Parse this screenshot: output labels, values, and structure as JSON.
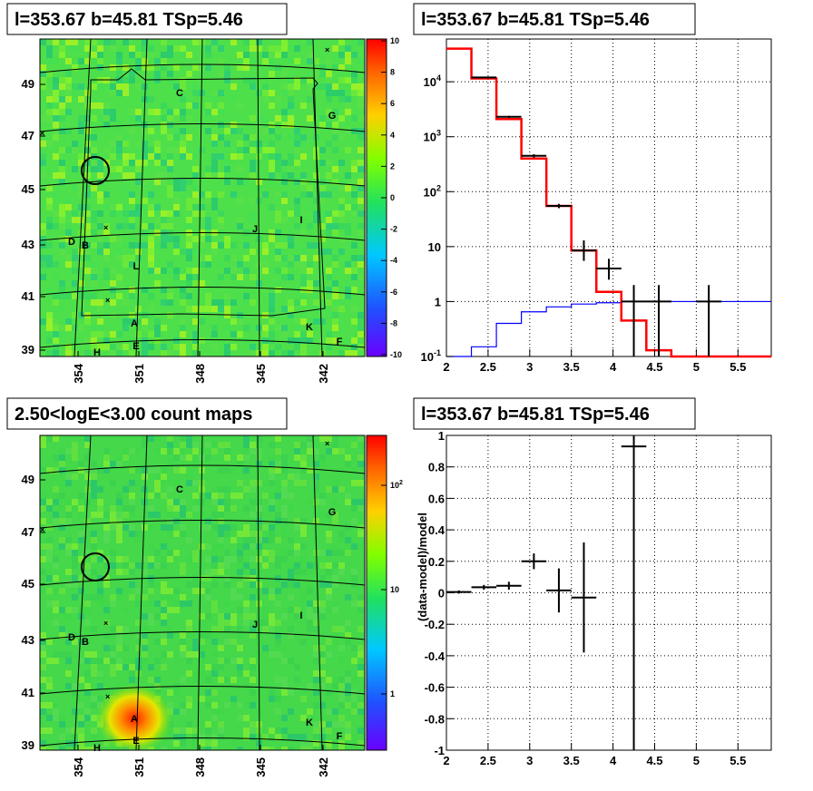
{
  "panels": {
    "tl_title": "l=353.67 b=45.81 TSp=5.46",
    "tr_title": "l=353.67 b=45.81 TSp=5.46",
    "bl_title": "2.50<logE<3.00 count maps",
    "br_title": "l=353.67 b=45.81 TSp=5.46"
  },
  "chart_data": [
    {
      "type": "heatmap",
      "title": "l=353.67 b=45.81 TSp=5.46",
      "x_ticks": [
        "354",
        "351",
        "348",
        "345",
        "342"
      ],
      "y_ticks": [
        "49",
        "47",
        "45",
        "43",
        "41",
        "39"
      ],
      "colorbar_ticks": [
        "10",
        "8",
        "6",
        "4",
        "2",
        "0",
        "-2",
        "-4",
        "-6",
        "-8",
        "-10"
      ],
      "colorbar_range": [
        -10,
        10
      ],
      "sources": [
        "A",
        "B",
        "C",
        "D",
        "E",
        "F",
        "G",
        "H",
        "I",
        "J",
        "K",
        "L"
      ],
      "grid": true
    },
    {
      "type": "line",
      "title": "l=353.67 b=45.81 TSp=5.46",
      "x_ticks": [
        "2",
        "2.5",
        "3",
        "3.5",
        "4",
        "4.5",
        "5",
        "5.5"
      ],
      "y_ticks": [
        "10^-1",
        "1",
        "10",
        "10^2",
        "10^3",
        "10^4"
      ],
      "xlim": [
        2,
        5.9
      ],
      "ylim": [
        0.1,
        60000
      ],
      "y_log": true,
      "grid": true,
      "series": [
        {
          "color": "#ff0000",
          "style": "histogram",
          "bin_edges": [
            2.0,
            2.3,
            2.6,
            2.9,
            3.2,
            3.5,
            3.8,
            4.1,
            4.4,
            4.7,
            5.9
          ],
          "values": [
            40000,
            11500,
            2100,
            400,
            55,
            8.5,
            1.5,
            0.45,
            0.13,
            0.1
          ]
        },
        {
          "color": "#0000ff",
          "style": "histogram",
          "bin_edges": [
            2.0,
            2.3,
            2.6,
            2.9,
            3.2,
            3.5,
            3.8,
            4.1,
            4.4,
            4.7,
            5.9
          ],
          "values": [
            0.1,
            0.15,
            0.4,
            0.65,
            0.8,
            0.9,
            0.95,
            1.0,
            1.0,
            1.0
          ]
        },
        {
          "color": "#000000",
          "style": "points",
          "x": [
            2.45,
            2.75,
            3.05,
            3.35,
            3.65,
            3.95,
            4.25,
            4.55,
            5.15
          ],
          "xerr": [
            0.15,
            0.15,
            0.15,
            0.15,
            0.15,
            0.15,
            0.15,
            0.15,
            0.15
          ],
          "y": [
            12000,
            2300,
            450,
            55,
            8.5,
            4.0,
            1.0,
            1.0,
            1.0
          ],
          "ylo": [
            11800,
            2200,
            420,
            50,
            5.5,
            2.5,
            0.1,
            0.1,
            0.1
          ],
          "yhi": [
            12200,
            2400,
            480,
            60,
            13.0,
            6.0,
            2.0,
            2.0,
            2.0
          ]
        }
      ]
    },
    {
      "type": "heatmap",
      "title": "2.50<logE<3.00 count maps",
      "x_ticks": [
        "354",
        "351",
        "348",
        "345",
        "342"
      ],
      "y_ticks": [
        "49",
        "47",
        "45",
        "43",
        "41",
        "39"
      ],
      "colorbar_ticks": [
        "10^2",
        "10",
        "1"
      ],
      "colorbar_scale": "log",
      "sources": [
        "A",
        "B",
        "C",
        "D",
        "E",
        "F",
        "G",
        "H",
        "I",
        "J",
        "K"
      ],
      "grid": true
    },
    {
      "type": "scatter",
      "title": "l=353.67 b=45.81 TSp=5.46",
      "ylabel": "(data-model)/model",
      "x_ticks": [
        "2",
        "2.5",
        "3",
        "3.5",
        "4",
        "4.5",
        "5",
        "5.5"
      ],
      "y_ticks": [
        "1",
        "0.8",
        "0.6",
        "0.4",
        "0.2",
        "0",
        "-0.2",
        "-0.4",
        "-0.6",
        "-0.8",
        "-1"
      ],
      "xlim": [
        2,
        5.9
      ],
      "ylim": [
        -1,
        1
      ],
      "grid": true,
      "series": [
        {
          "color": "#000000",
          "x": [
            2.15,
            2.45,
            2.75,
            3.05,
            3.35,
            3.65,
            4.25
          ],
          "xerr": [
            0.15,
            0.15,
            0.15,
            0.15,
            0.15,
            0.15,
            0.15
          ],
          "y": [
            0.005,
            0.035,
            0.045,
            0.2,
            0.015,
            -0.03,
            0.93
          ],
          "yerr": [
            0.01,
            0.015,
            0.025,
            0.05,
            0.14,
            0.35,
            1.95
          ]
        }
      ]
    }
  ]
}
